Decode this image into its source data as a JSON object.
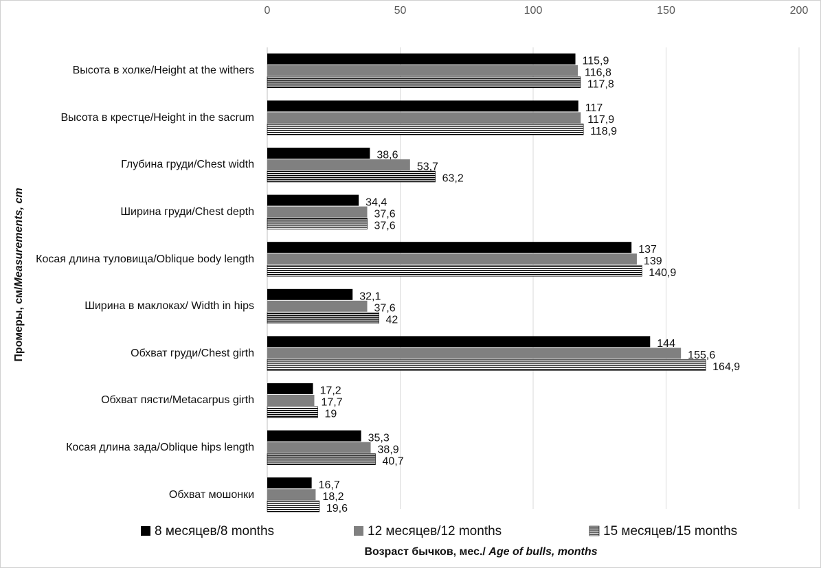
{
  "chart_data": {
    "type": "bar",
    "orientation": "horizontal",
    "y_label": {
      "normal": "Промеры, см/",
      "italic": "Measurements,  cm"
    },
    "x_label": {
      "normal": "Возраст бычков, мес./ ",
      "italic": "Age of bulls, months"
    },
    "categories": [
      "Высота в холке/Height at the withers",
      "Высота в крестце/Height in the sacrum",
      "Глубина груди/Chest width",
      "Ширина груди/Chest depth",
      "Косая длина туловища/Oblique body length",
      "Ширина в маклоках/ Width in hips",
      "Обхват груди/Chest girth",
      "Обхват пясти/Metacarpus girth",
      "Косая длина зада/Oblique hips length",
      "Обхват мошонки"
    ],
    "series": [
      {
        "name": "8 месяцев/8 months",
        "color": "#000000",
        "fill": "solid",
        "values": [
          115.9,
          117,
          38.6,
          34.4,
          137,
          32.1,
          144,
          17.2,
          35.3,
          16.7
        ],
        "value_labels": [
          "115,9",
          "117",
          "38,6",
          "34,4",
          "137",
          "32,1",
          "144",
          "17,2",
          "35,3",
          "16,7"
        ]
      },
      {
        "name": "12 месяцев/12 months",
        "color": "#808080",
        "fill": "solid",
        "values": [
          116.8,
          117.9,
          53.7,
          37.6,
          139,
          37.6,
          155.6,
          17.7,
          38.9,
          18.2
        ],
        "value_labels": [
          "116,8",
          "117,9",
          "53,7",
          "37,6",
          "139",
          "37,6",
          "155,6",
          "17,7",
          "38,9",
          "18,2"
        ]
      },
      {
        "name": "15 месяцев/15 months",
        "color": "#000000",
        "fill": "horizontal-stripes",
        "values": [
          117.8,
          118.9,
          63.2,
          37.6,
          140.9,
          42,
          164.9,
          19,
          40.7,
          19.6
        ],
        "value_labels": [
          "117,8",
          "118,9",
          "63,2",
          "37,6",
          "140,9",
          "42",
          "164,9",
          "19",
          "40,7",
          "19,6"
        ]
      }
    ],
    "xlim": [
      0,
      200
    ],
    "xticks": [
      0,
      50,
      100,
      150,
      200
    ],
    "grid": true,
    "legend": "bottom"
  }
}
